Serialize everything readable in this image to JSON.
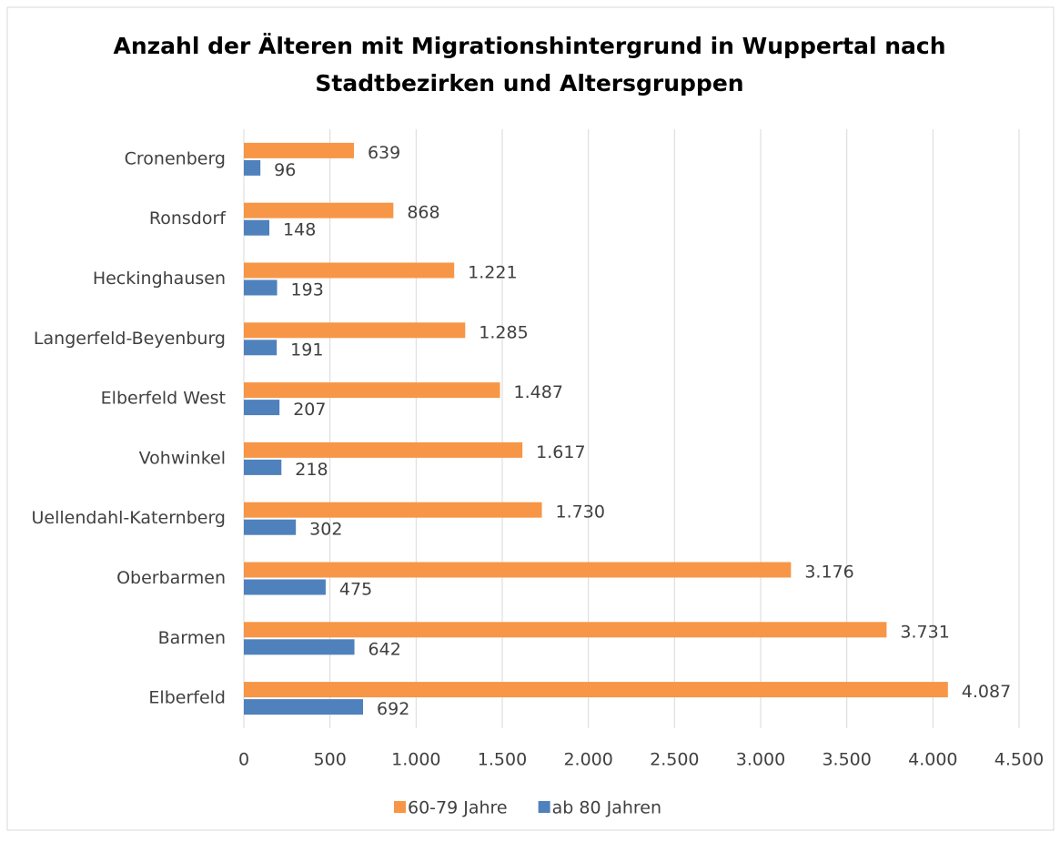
{
  "chart_data": {
    "type": "hbar",
    "title": [
      "Anzahl der Älteren mit Migrationshintergrund in Wuppertal nach",
      "Stadtbezirken und Altersgruppen"
    ],
    "categories": [
      "Cronenberg",
      "Ronsdorf",
      "Heckinghausen",
      "Langerfeld-Beyenburg",
      "Elberfeld West",
      "Vohwinkel",
      "Uellendahl-Katernberg",
      "Oberbarmen",
      "Barmen",
      "Elberfeld"
    ],
    "series": [
      {
        "name": "60-79 Jahre",
        "color": "#f79646",
        "values": [
          639,
          868,
          1221,
          1285,
          1487,
          1617,
          1730,
          3176,
          3731,
          4087
        ],
        "value_labels": [
          "639",
          "868",
          "1.221",
          "1.285",
          "1.487",
          "1.617",
          "1.730",
          "3.176",
          "3.731",
          "4.087"
        ]
      },
      {
        "name": "ab 80 Jahren",
        "color": "#4f81bd",
        "values": [
          96,
          148,
          193,
          191,
          207,
          218,
          302,
          475,
          642,
          692
        ],
        "value_labels": [
          "96",
          "148",
          "193",
          "191",
          "207",
          "218",
          "302",
          "475",
          "642",
          "692"
        ]
      }
    ],
    "xlim": [
      0,
      4500
    ],
    "xticks": [
      0,
      500,
      {
        "value": 1000,
        "label": "1.000"
      },
      {
        "value": 1500,
        "label": "1.500"
      },
      {
        "value": 2000,
        "label": "2.000"
      },
      {
        "value": 2500,
        "label": "2.500"
      },
      {
        "value": 3000,
        "label": "3.000"
      },
      {
        "value": 3500,
        "label": "3.500"
      },
      {
        "value": 4000,
        "label": "4.000"
      },
      {
        "value": 4500,
        "label": "4.500"
      }
    ],
    "grid": true,
    "legend": "bottom"
  }
}
